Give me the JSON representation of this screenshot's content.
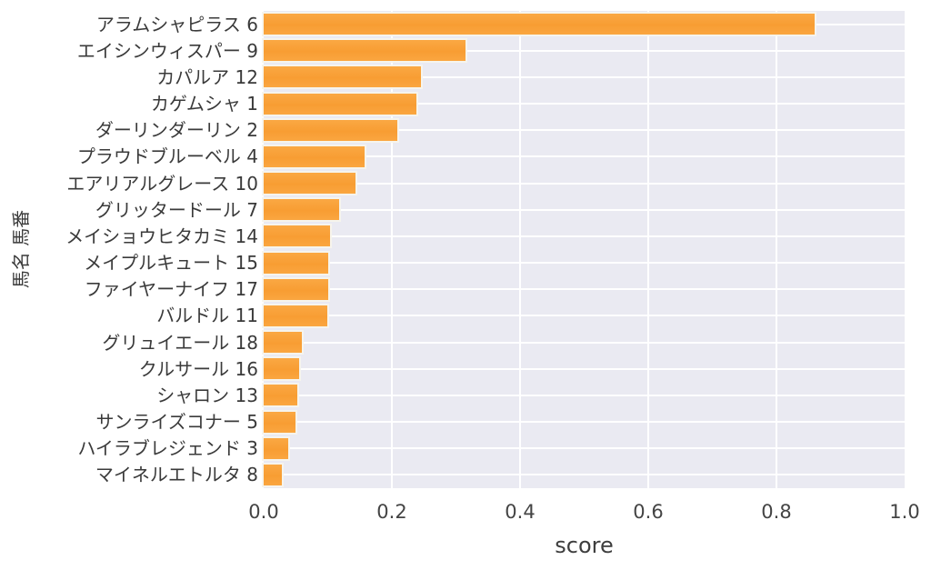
{
  "figure": {
    "background": "#ffffff",
    "plot_background": "#eaeaf2",
    "grid_color": "#ffffff",
    "bar_color": "#f9a239",
    "bar_edge_color": "#f5f2ea",
    "label_color": "#3a3a3a",
    "tick_color": "#444444"
  },
  "chart_data": {
    "type": "bar",
    "orientation": "horizontal",
    "title": "",
    "xlabel": "score",
    "ylabel": "馬名 馬番",
    "xlim": [
      0.0,
      1.0
    ],
    "xtick_labels": [
      "0.0",
      "0.2",
      "0.4",
      "0.6",
      "0.8",
      "1.0"
    ],
    "xtick_values": [
      0.0,
      0.2,
      0.4,
      0.6,
      0.8,
      1.0
    ],
    "grid": true,
    "legend": false,
    "categories": [
      "アラムシャピラス 6",
      "エイシンウィスパー 9",
      "カパルア 12",
      "カゲムシャ 1",
      "ダーリンダーリン 2",
      "プラウドブルーベル 4",
      "エアリアルグレース 10",
      "グリッタードール 7",
      "メイショウヒタカミ 14",
      "メイプルキュート 15",
      "ファイヤーナイフ 17",
      "バルドル 11",
      "グリュイエール 18",
      "クルサール 16",
      "シャロン 13",
      "サンライズコナー 5",
      "ハイラブレジェンド 3",
      "マイネルエトルタ 8"
    ],
    "values": [
      0.86,
      0.315,
      0.246,
      0.239,
      0.209,
      0.157,
      0.143,
      0.118,
      0.103,
      0.101,
      0.1,
      0.099,
      0.06,
      0.056,
      0.053,
      0.05,
      0.039,
      0.029
    ]
  }
}
